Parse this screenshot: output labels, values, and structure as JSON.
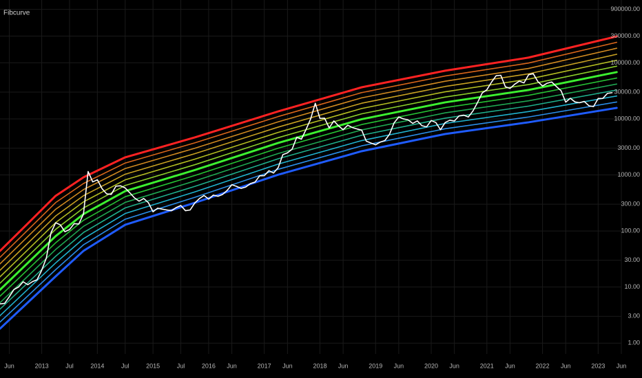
{
  "chart_data": {
    "type": "line",
    "title": "Fibcurve",
    "log_y": true,
    "grid": true,
    "xlim": [
      "2012-04",
      "2023-06"
    ],
    "ylim": [
      0.64,
      1320000
    ],
    "xticks": [
      {
        "value": "2012-06",
        "label": "Jun"
      },
      {
        "value": "2013-01",
        "label": "2013"
      },
      {
        "value": "2013-07",
        "label": "Jul"
      },
      {
        "value": "2014-01",
        "label": "2014"
      },
      {
        "value": "2014-07",
        "label": "Jul"
      },
      {
        "value": "2015-01",
        "label": "2015"
      },
      {
        "value": "2015-07",
        "label": "Jul"
      },
      {
        "value": "2016-01",
        "label": "2016"
      },
      {
        "value": "2016-06",
        "label": "Jun"
      },
      {
        "value": "2017-01",
        "label": "2017"
      },
      {
        "value": "2017-06",
        "label": "Jun"
      },
      {
        "value": "2018-01",
        "label": "2018"
      },
      {
        "value": "2018-06",
        "label": "Jun"
      },
      {
        "value": "2019-01",
        "label": "2019"
      },
      {
        "value": "2019-06",
        "label": "Jun"
      },
      {
        "value": "2020-01",
        "label": "2020"
      },
      {
        "value": "2020-06",
        "label": "Jun"
      },
      {
        "value": "2021-01",
        "label": "2021"
      },
      {
        "value": "2021-06",
        "label": "Jun"
      },
      {
        "value": "2022-01",
        "label": "2022"
      },
      {
        "value": "2022-06",
        "label": "Jun"
      },
      {
        "value": "2023-01",
        "label": "2023"
      },
      {
        "value": "2023-06",
        "label": "Jun"
      }
    ],
    "yticks": [
      {
        "value": 1,
        "label": "1.00"
      },
      {
        "value": 3,
        "label": "3.00"
      },
      {
        "value": 10,
        "label": "10.00"
      },
      {
        "value": 30,
        "label": "30.00"
      },
      {
        "value": 100,
        "label": "100.00"
      },
      {
        "value": 300,
        "label": "300.00"
      },
      {
        "value": 1000,
        "label": "1000.00"
      },
      {
        "value": 3000,
        "label": "3000.00"
      },
      {
        "value": 10000,
        "label": "10000.00"
      },
      {
        "value": 30000,
        "label": "30000.00"
      },
      {
        "value": 100000,
        "label": "100000.00"
      },
      {
        "value": 300000,
        "label": "300000.00"
      },
      {
        "value": 900000,
        "label": "900000.00"
      }
    ],
    "series": [
      {
        "color": "#1f5cff",
        "thick": true,
        "x": [
          "2012-04",
          "2012-10",
          "2013-04",
          "2013-10",
          "2014-07",
          "2015-10",
          "2017-04",
          "2018-10",
          "2020-04",
          "2021-10",
          "2023-05"
        ],
        "values": [
          1.81,
          5.3,
          15.5,
          44.1,
          129,
          318,
          1010,
          2650,
          5370,
          8690,
          15700
        ]
      },
      {
        "color": "#2a8ee8",
        "x": [
          "2012-04",
          "2012-10",
          "2013-04",
          "2013-10",
          "2014-07",
          "2015-10",
          "2017-04",
          "2018-10",
          "2020-04",
          "2021-10",
          "2023-05"
        ],
        "values": [
          2.37,
          6.95,
          20.4,
          56.6,
          162,
          398,
          1260,
          3300,
          6670,
          10800,
          20000
        ]
      },
      {
        "color": "#20b4d0",
        "x": [
          "2012-04",
          "2012-10",
          "2013-04",
          "2013-10",
          "2014-07",
          "2015-10",
          "2017-04",
          "2018-10",
          "2020-04",
          "2021-10",
          "2023-05"
        ],
        "values": [
          3.08,
          9.1,
          26.9,
          72.9,
          205,
          498,
          1560,
          4100,
          8280,
          13500,
          25600
        ]
      },
      {
        "color": "#1fb08c",
        "x": [
          "2012-04",
          "2012-10",
          "2013-04",
          "2013-10",
          "2014-07",
          "2015-10",
          "2017-04",
          "2018-10",
          "2020-04",
          "2021-10",
          "2023-05"
        ],
        "values": [
          4.03,
          11.9,
          35.4,
          93.8,
          258,
          624,
          1940,
          5110,
          10300,
          16900,
          32700
        ]
      },
      {
        "color": "#1fa852",
        "x": [
          "2012-04",
          "2012-10",
          "2013-04",
          "2013-10",
          "2014-07",
          "2015-10",
          "2017-04",
          "2018-10",
          "2020-04",
          "2021-10",
          "2023-05"
        ],
        "values": [
          5.25,
          15.6,
          46.7,
          121,
          324,
          780,
          2410,
          6350,
          12800,
          21000,
          41800
        ]
      },
      {
        "color": "#26c234",
        "x": [
          "2012-04",
          "2012-10",
          "2013-04",
          "2013-10",
          "2014-07",
          "2015-10",
          "2017-04",
          "2018-10",
          "2020-04",
          "2021-10",
          "2023-05"
        ],
        "values": [
          6.85,
          20.5,
          61.5,
          155,
          409,
          975,
          3000,
          7920,
          15900,
          26300,
          53500
        ]
      },
      {
        "color": "#3cf030",
        "thick": true,
        "x": [
          "2012-04",
          "2012-10",
          "2013-04",
          "2013-10",
          "2014-07",
          "2015-10",
          "2017-04",
          "2018-10",
          "2020-04",
          "2021-10",
          "2023-05"
        ],
        "values": [
          8.93,
          26.9,
          80.9,
          200,
          515,
          1220,
          3720,
          9860,
          19700,
          32800,
          68200
        ]
      },
      {
        "color": "#8ccf2a",
        "x": [
          "2012-04",
          "2012-10",
          "2013-04",
          "2013-10",
          "2014-07",
          "2015-10",
          "2017-04",
          "2018-10",
          "2020-04",
          "2021-10",
          "2023-05"
        ],
        "values": [
          11.7,
          35.2,
          107,
          257,
          649,
          1520,
          4620,
          12300,
          24500,
          40900,
          87100
        ]
      },
      {
        "color": "#b4be22",
        "x": [
          "2012-04",
          "2012-10",
          "2013-04",
          "2013-10",
          "2014-07",
          "2015-10",
          "2017-04",
          "2018-10",
          "2020-04",
          "2021-10",
          "2023-05"
        ],
        "values": [
          15.2,
          46.2,
          141,
          330,
          817,
          1910,
          5740,
          15300,
          30400,
          51100,
          111000
        ]
      },
      {
        "color": "#c9a222",
        "x": [
          "2012-04",
          "2012-10",
          "2013-04",
          "2013-10",
          "2014-07",
          "2015-10",
          "2017-04",
          "2018-10",
          "2020-04",
          "2021-10",
          "2023-05"
        ],
        "values": [
          19.9,
          60.5,
          185,
          426,
          1030,
          2390,
          7130,
          19000,
          37800,
          63700,
          142000
        ]
      },
      {
        "color": "#d18a20",
        "x": [
          "2012-04",
          "2012-10",
          "2013-04",
          "2013-10",
          "2014-07",
          "2015-10",
          "2017-04",
          "2018-10",
          "2020-04",
          "2021-10",
          "2023-05"
        ],
        "values": [
          25.9,
          79.4,
          244,
          547,
          1300,
          2990,
          8850,
          23700,
          46900,
          79400,
          182000
        ]
      },
      {
        "color": "#d9661a",
        "x": [
          "2012-04",
          "2012-10",
          "2013-04",
          "2013-10",
          "2014-07",
          "2015-10",
          "2017-04",
          "2018-10",
          "2020-04",
          "2021-10",
          "2023-05"
        ],
        "values": [
          33.8,
          104,
          321,
          703,
          1630,
          3730,
          11000,
          29400,
          58200,
          99100,
          232000
        ]
      },
      {
        "color": "#ff2222",
        "thick": true,
        "x": [
          "2012-04",
          "2012-10",
          "2013-04",
          "2013-10",
          "2014-07",
          "2015-10",
          "2017-04",
          "2018-10",
          "2020-04",
          "2021-10",
          "2023-05"
        ],
        "values": [
          44.1,
          136,
          423,
          906,
          2060,
          4670,
          13600,
          36600,
          72300,
          124000,
          296000
        ]
      },
      {
        "color": "#ffffff",
        "x": [
          "2012-04",
          "2012-05",
          "2012-06",
          "2012-07",
          "2012-08",
          "2012-09",
          "2012-10",
          "2012-11",
          "2012-12",
          "2013-01",
          "2013-02",
          "2013-03",
          "2013-04",
          "2013-05",
          "2013-06",
          "2013-07",
          "2013-08",
          "2013-09",
          "2013-10",
          "2013-11",
          "2013-12",
          "2014-01",
          "2014-02",
          "2014-03",
          "2014-04",
          "2014-05",
          "2014-06",
          "2014-07",
          "2014-08",
          "2014-09",
          "2014-10",
          "2014-11",
          "2014-12",
          "2015-01",
          "2015-02",
          "2015-03",
          "2015-04",
          "2015-05",
          "2015-06",
          "2015-07",
          "2015-08",
          "2015-09",
          "2015-10",
          "2015-11",
          "2015-12",
          "2016-01",
          "2016-02",
          "2016-03",
          "2016-04",
          "2016-05",
          "2016-06",
          "2016-07",
          "2016-08",
          "2016-09",
          "2016-10",
          "2016-11",
          "2016-12",
          "2017-01",
          "2017-02",
          "2017-03",
          "2017-04",
          "2017-05",
          "2017-06",
          "2017-07",
          "2017-08",
          "2017-09",
          "2017-10",
          "2017-11",
          "2017-12",
          "2018-01",
          "2018-02",
          "2018-03",
          "2018-04",
          "2018-05",
          "2018-06",
          "2018-07",
          "2018-08",
          "2018-09",
          "2018-10",
          "2018-11",
          "2018-12",
          "2019-01",
          "2019-02",
          "2019-03",
          "2019-04",
          "2019-05",
          "2019-06",
          "2019-07",
          "2019-08",
          "2019-09",
          "2019-10",
          "2019-11",
          "2019-12",
          "2020-01",
          "2020-02",
          "2020-03",
          "2020-04",
          "2020-05",
          "2020-06",
          "2020-07",
          "2020-08",
          "2020-09",
          "2020-10",
          "2020-11",
          "2020-12",
          "2021-01",
          "2021-02",
          "2021-03",
          "2021-04",
          "2021-05",
          "2021-06",
          "2021-07",
          "2021-08",
          "2021-09",
          "2021-10",
          "2021-11",
          "2021-12",
          "2022-01",
          "2022-02",
          "2022-03",
          "2022-04",
          "2022-05",
          "2022-06",
          "2022-07",
          "2022-08",
          "2022-09",
          "2022-10",
          "2022-11",
          "2022-12",
          "2023-01",
          "2023-02",
          "2023-03",
          "2023-04"
        ],
        "values": [
          5,
          5.1,
          6.7,
          9,
          10,
          12.4,
          11,
          12.5,
          13.5,
          20,
          33,
          93,
          140,
          129,
          97,
          106,
          135,
          133,
          200,
          1150,
          750,
          820,
          570,
          460,
          450,
          630,
          640,
          585,
          480,
          390,
          340,
          380,
          320,
          220,
          255,
          245,
          237,
          230,
          262,
          285,
          230,
          237,
          315,
          378,
          430,
          370,
          437,
          416,
          448,
          530,
          670,
          625,
          575,
          608,
          700,
          745,
          964,
          970,
          1190,
          1080,
          1350,
          2300,
          2480,
          2880,
          4700,
          4340,
          6450,
          10000,
          19000,
          10200,
          10300,
          6900,
          9200,
          7500,
          6400,
          7700,
          7000,
          6600,
          6300,
          4000,
          3700,
          3450,
          3850,
          4100,
          5300,
          8500,
          10800,
          10000,
          9600,
          8300,
          9200,
          7550,
          7200,
          9350,
          8600,
          6400,
          8600,
          9450,
          9150,
          11300,
          11650,
          10800,
          13800,
          19700,
          29000,
          33100,
          45200,
          58800,
          60000,
          37300,
          35000,
          41500,
          47100,
          43800,
          61300,
          64000,
          46300,
          38500,
          43200,
          45500,
          37700,
          31800,
          19900,
          23300,
          20050,
          19400,
          20500,
          17150,
          16550,
          23100,
          23150,
          28500,
          29300
        ]
      }
    ]
  }
}
